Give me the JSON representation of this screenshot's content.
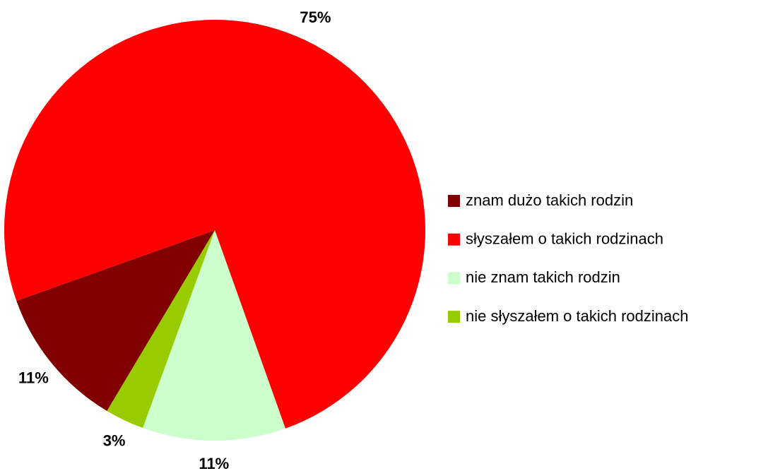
{
  "chart_data": {
    "type": "pie",
    "categories": [
      "znam dużo takich rodzin",
      "słyszałem o takich rodzinach",
      "nie znam takich rodzin",
      "nie słyszałem o takich rodzinach"
    ],
    "values": [
      11,
      75,
      11,
      3
    ],
    "value_labels": [
      "11%",
      "75%",
      "11%",
      "3%"
    ],
    "colors": [
      "#800000",
      "#ff0000",
      "#ccffcc",
      "#99cc00"
    ],
    "legend": "right"
  }
}
